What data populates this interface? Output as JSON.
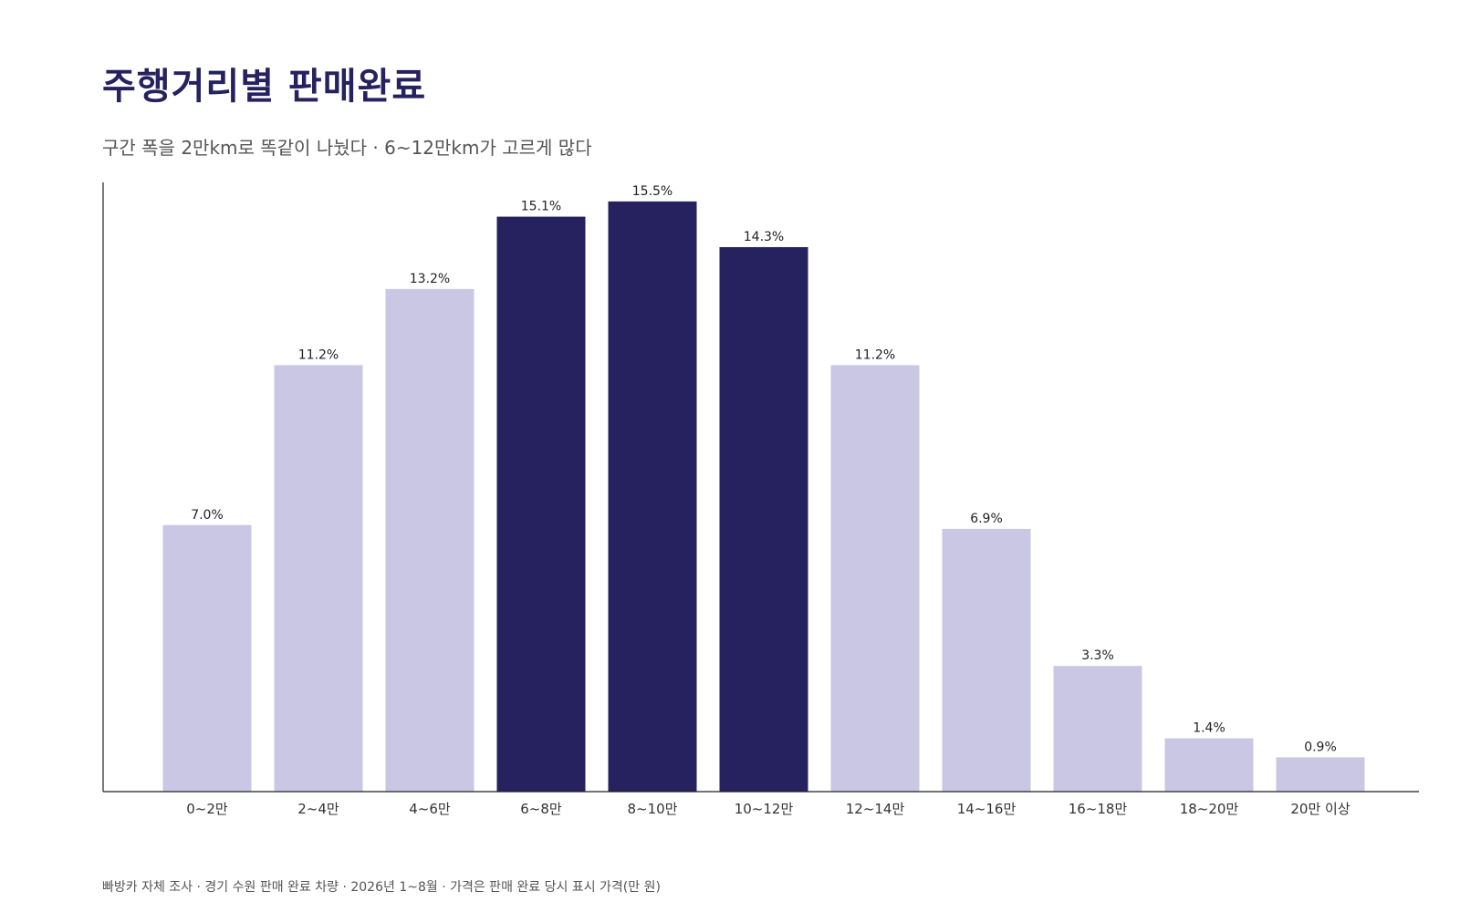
{
  "title": "주행거리별 판매완료",
  "subtitle": "구간 폭을 2만km로 똑같이 나눴다 · 6~12만km가 고르게 많다",
  "footer": "빠방카 자체 조사 · 경기 수원 판매 완료 차량 · 2026년 1~8월 · 가격은 판매 완료 당시 표시 가격(만 원)",
  "colors": {
    "highlight": "#26215f",
    "normal": "#c9c7e4",
    "title": "#26215f",
    "axis": "#222222"
  },
  "chart_data": {
    "type": "bar",
    "categories": [
      "0~2만",
      "2~4만",
      "4~6만",
      "6~8만",
      "8~10만",
      "10~12만",
      "12~14만",
      "14~16만",
      "16~18만",
      "18~20만",
      "20만 이상"
    ],
    "values": [
      7.0,
      11.2,
      13.2,
      15.1,
      15.5,
      14.3,
      11.2,
      6.9,
      3.3,
      1.4,
      0.9
    ],
    "value_labels": [
      "7.0%",
      "11.2%",
      "13.2%",
      "15.1%",
      "15.5%",
      "14.3%",
      "11.2%",
      "6.9%",
      "3.3%",
      "1.4%",
      "0.9%"
    ],
    "highlighted": [
      false,
      false,
      false,
      true,
      true,
      true,
      false,
      false,
      false,
      false,
      false
    ],
    "xlabel": "",
    "ylabel": "",
    "ylim": [
      0,
      16
    ],
    "grid": false,
    "legend": false
  }
}
